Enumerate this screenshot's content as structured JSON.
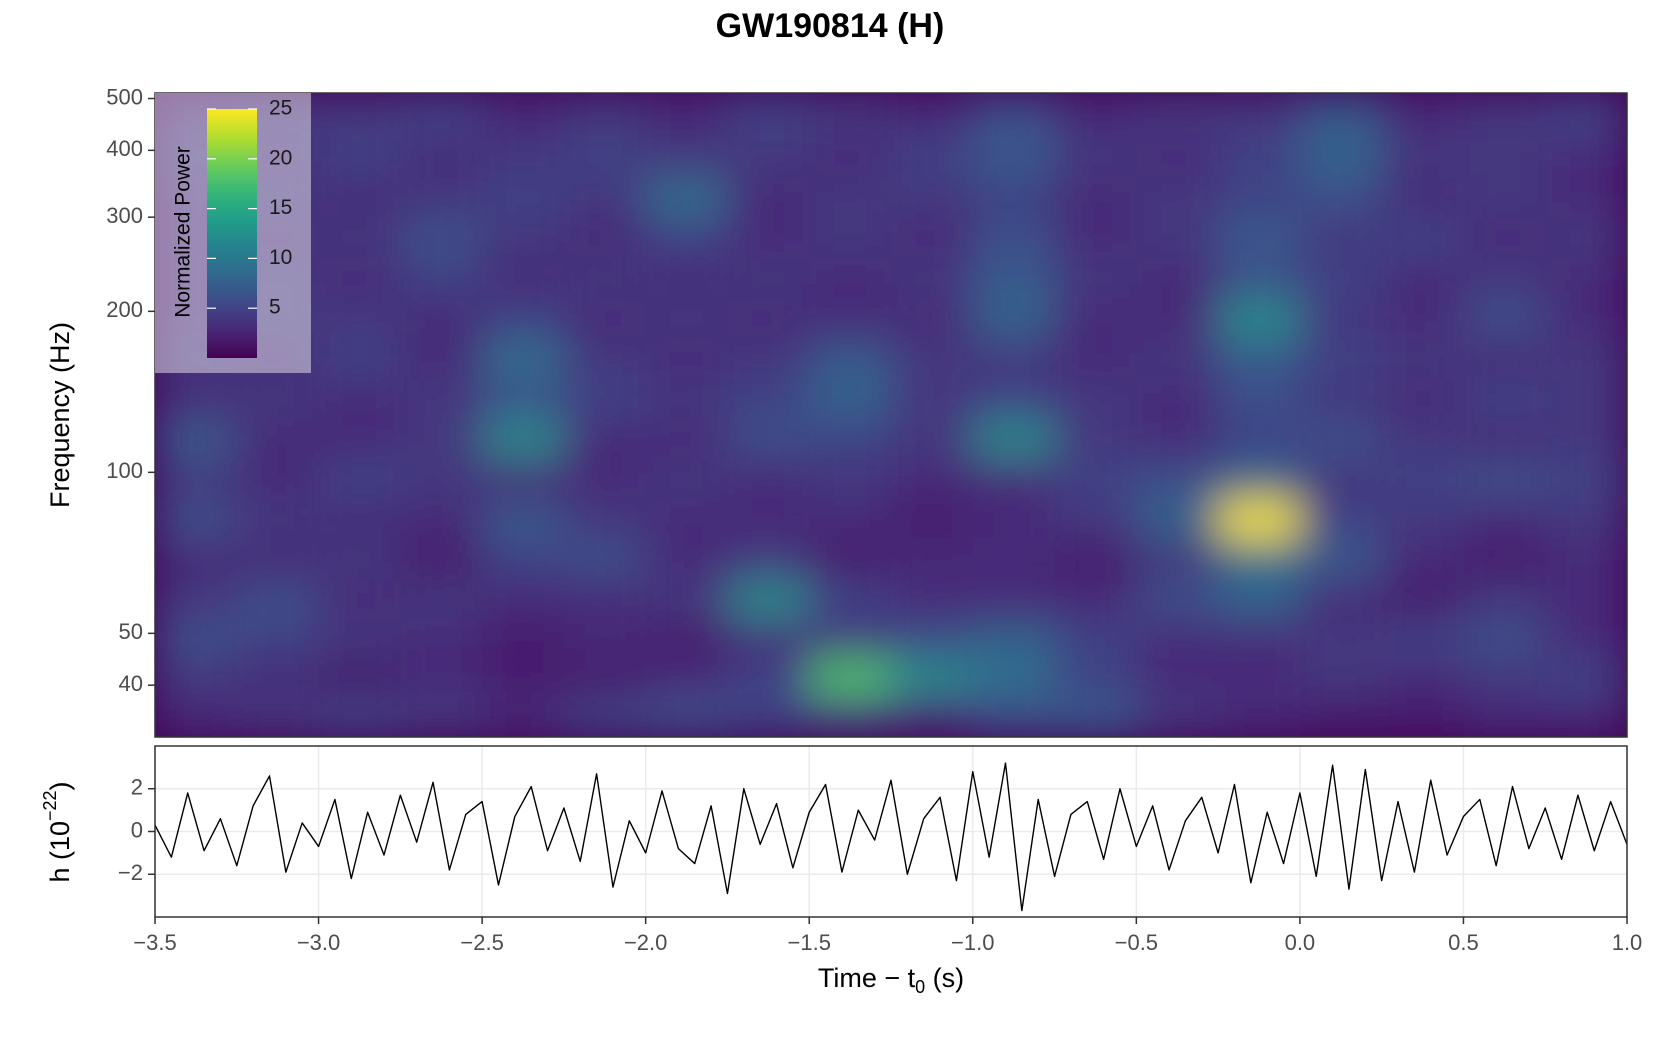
{
  "chart_data": [
    {
      "type": "heatmap",
      "title": "GW190814 (H)",
      "ylabel": "Frequency (Hz)",
      "yscale": "log",
      "ylim": [
        32,
        512
      ],
      "yticks": [
        40,
        50,
        100,
        200,
        300,
        400,
        500
      ],
      "time_bins": [
        -3.5,
        -3.25,
        -3,
        -2.75,
        -2.5,
        -2.25,
        -2,
        -1.75,
        -1.5,
        -1.25,
        -1,
        -0.75,
        -0.5,
        -0.25,
        0,
        0.25,
        0.5,
        0.75,
        1
      ],
      "freq_bins": [
        32,
        38,
        45,
        53,
        63,
        75,
        89,
        106,
        126,
        150,
        178,
        212,
        252,
        300,
        357,
        425,
        512
      ],
      "z": [
        [
          3,
          4,
          5,
          4,
          3,
          5,
          6,
          5,
          4,
          3,
          6,
          7,
          4,
          3,
          2,
          2,
          3,
          3
        ],
        [
          4,
          3,
          2,
          3,
          2,
          2,
          3,
          5,
          18,
          12,
          9,
          5,
          3,
          3,
          4,
          3,
          4,
          5
        ],
        [
          6,
          5,
          4,
          3,
          2,
          3,
          2,
          3,
          4,
          6,
          8,
          5,
          3,
          3,
          4,
          5,
          6,
          3
        ],
        [
          4,
          6,
          3,
          4,
          3,
          3,
          4,
          12,
          5,
          3,
          3,
          3,
          6,
          8,
          3,
          2,
          4,
          3
        ],
        [
          3,
          3,
          4,
          2,
          5,
          6,
          3,
          4,
          2,
          3,
          3,
          2,
          4,
          9,
          7,
          3,
          2,
          3
        ],
        [
          6,
          4,
          3,
          3,
          7,
          4,
          3,
          3,
          3,
          2,
          3,
          4,
          8,
          25,
          5,
          4,
          3,
          4
        ],
        [
          4,
          3,
          5,
          4,
          3,
          3,
          4,
          3,
          4,
          3,
          3,
          5,
          6,
          8,
          4,
          5,
          6,
          5
        ],
        [
          7,
          3,
          3,
          4,
          12,
          3,
          3,
          6,
          5,
          4,
          12,
          4,
          3,
          5,
          6,
          4,
          3,
          4
        ],
        [
          3,
          4,
          3,
          4,
          6,
          5,
          4,
          5,
          8,
          4,
          5,
          4,
          3,
          6,
          4,
          3,
          5,
          4
        ],
        [
          4,
          3,
          5,
          3,
          9,
          4,
          3,
          4,
          7,
          4,
          4,
          3,
          4,
          7,
          5,
          4,
          3,
          4
        ],
        [
          3,
          4,
          4,
          3,
          5,
          3,
          4,
          3,
          3,
          3,
          8,
          3,
          3,
          12,
          4,
          3,
          6,
          3
        ],
        [
          3,
          4,
          3,
          5,
          3,
          4,
          3,
          4,
          3,
          4,
          7,
          4,
          3,
          6,
          5,
          3,
          4,
          3
        ],
        [
          3,
          3,
          4,
          6,
          4,
          3,
          5,
          3,
          4,
          3,
          6,
          3,
          4,
          7,
          4,
          5,
          3,
          4
        ],
        [
          3,
          4,
          3,
          4,
          5,
          4,
          9,
          3,
          4,
          4,
          5,
          3,
          4,
          5,
          6,
          3,
          4,
          3
        ],
        [
          4,
          3,
          5,
          3,
          4,
          5,
          4,
          4,
          3,
          5,
          7,
          4,
          3,
          5,
          8,
          4,
          4,
          3
        ],
        [
          3,
          4,
          4,
          5,
          3,
          4,
          3,
          5,
          4,
          3,
          6,
          3,
          4,
          4,
          7,
          3,
          4,
          5
        ]
      ],
      "colormap": "viridis",
      "colorbar": {
        "label": "Normalized Power",
        "lim": [
          0,
          25
        ],
        "ticks": [
          5,
          10,
          15,
          20,
          25
        ]
      }
    },
    {
      "type": "line",
      "ylabel": [
        "h (10",
        "−22",
        ")"
      ],
      "xlabel": [
        "Time − t",
        "0",
        " (s)"
      ],
      "color": "#000000",
      "grid": true,
      "xlim": [
        -3.5,
        1
      ],
      "xticks": [
        {
          "value": -3.5,
          "label": "−3.5"
        },
        {
          "value": -3,
          "label": "−3.0"
        },
        {
          "value": -2.5,
          "label": "−2.5"
        },
        {
          "value": -2,
          "label": "−2.0"
        },
        {
          "value": -1.5,
          "label": "−1.5"
        },
        {
          "value": -1,
          "label": "−1.0"
        },
        {
          "value": -0.5,
          "label": "−0.5"
        },
        {
          "value": 0,
          "label": "0.0"
        },
        {
          "value": 0.5,
          "label": "0.5"
        },
        {
          "value": 1,
          "label": "1.0"
        }
      ],
      "ylim": [
        -4,
        4
      ],
      "yticks": [
        {
          "value": -2,
          "label": "−2"
        },
        0,
        2
      ],
      "x": [
        -3.5,
        -3.45,
        -3.4,
        -3.35,
        -3.3,
        -3.25,
        -3.2,
        -3.15,
        -3.1,
        -3.05,
        -3,
        -2.95,
        -2.9,
        -2.85,
        -2.8,
        -2.75,
        -2.7,
        -2.65,
        -2.6,
        -2.55,
        -2.5,
        -2.45,
        -2.4,
        -2.35,
        -2.3,
        -2.25,
        -2.2,
        -2.15,
        -2.1,
        -2.05,
        -2,
        -1.95,
        -1.9,
        -1.85,
        -1.8,
        -1.75,
        -1.7,
        -1.65,
        -1.6,
        -1.55,
        -1.5,
        -1.45,
        -1.4,
        -1.35,
        -1.3,
        -1.25,
        -1.2,
        -1.15,
        -1.1,
        -1.05,
        -1,
        -0.95,
        -0.9,
        -0.85,
        -0.8,
        -0.75,
        -0.7,
        -0.65,
        -0.6,
        -0.55,
        -0.5,
        -0.45,
        -0.4,
        -0.35,
        -0.3,
        -0.25,
        -0.2,
        -0.15,
        -0.1,
        -0.05,
        0,
        0.05,
        0.1,
        0.15,
        0.2,
        0.25,
        0.3,
        0.35,
        0.4,
        0.45,
        0.5,
        0.55,
        0.6,
        0.65,
        0.7,
        0.75,
        0.8,
        0.85,
        0.9,
        0.95,
        1
      ],
      "values": [
        0.3,
        -1.2,
        1.8,
        -0.9,
        0.6,
        -1.6,
        1.2,
        2.6,
        -1.9,
        0.4,
        -0.7,
        1.5,
        -2.2,
        0.9,
        -1.1,
        1.7,
        -0.5,
        2.3,
        -1.8,
        0.8,
        1.4,
        -2.5,
        0.7,
        2.1,
        -0.9,
        1.1,
        -1.4,
        2.7,
        -2.6,
        0.5,
        -1.0,
        1.9,
        -0.8,
        -1.5,
        1.2,
        -2.9,
        2.0,
        -0.6,
        1.3,
        -1.7,
        0.9,
        2.2,
        -1.9,
        1.0,
        -0.4,
        2.4,
        -2.0,
        0.6,
        1.6,
        -2.3,
        2.8,
        -1.2,
        3.2,
        -3.7,
        1.5,
        -2.1,
        0.8,
        1.4,
        -1.3,
        2.0,
        -0.7,
        1.2,
        -1.8,
        0.5,
        1.6,
        -1.0,
        2.2,
        -2.4,
        0.9,
        -1.5,
        1.8,
        -2.1,
        3.1,
        -2.7,
        2.9,
        -2.3,
        1.4,
        -1.9,
        2.4,
        -1.1,
        0.7,
        1.5,
        -1.6,
        2.1,
        -0.8,
        1.1,
        -1.3,
        1.7,
        -0.9,
        1.4,
        -0.6
      ]
    }
  ]
}
